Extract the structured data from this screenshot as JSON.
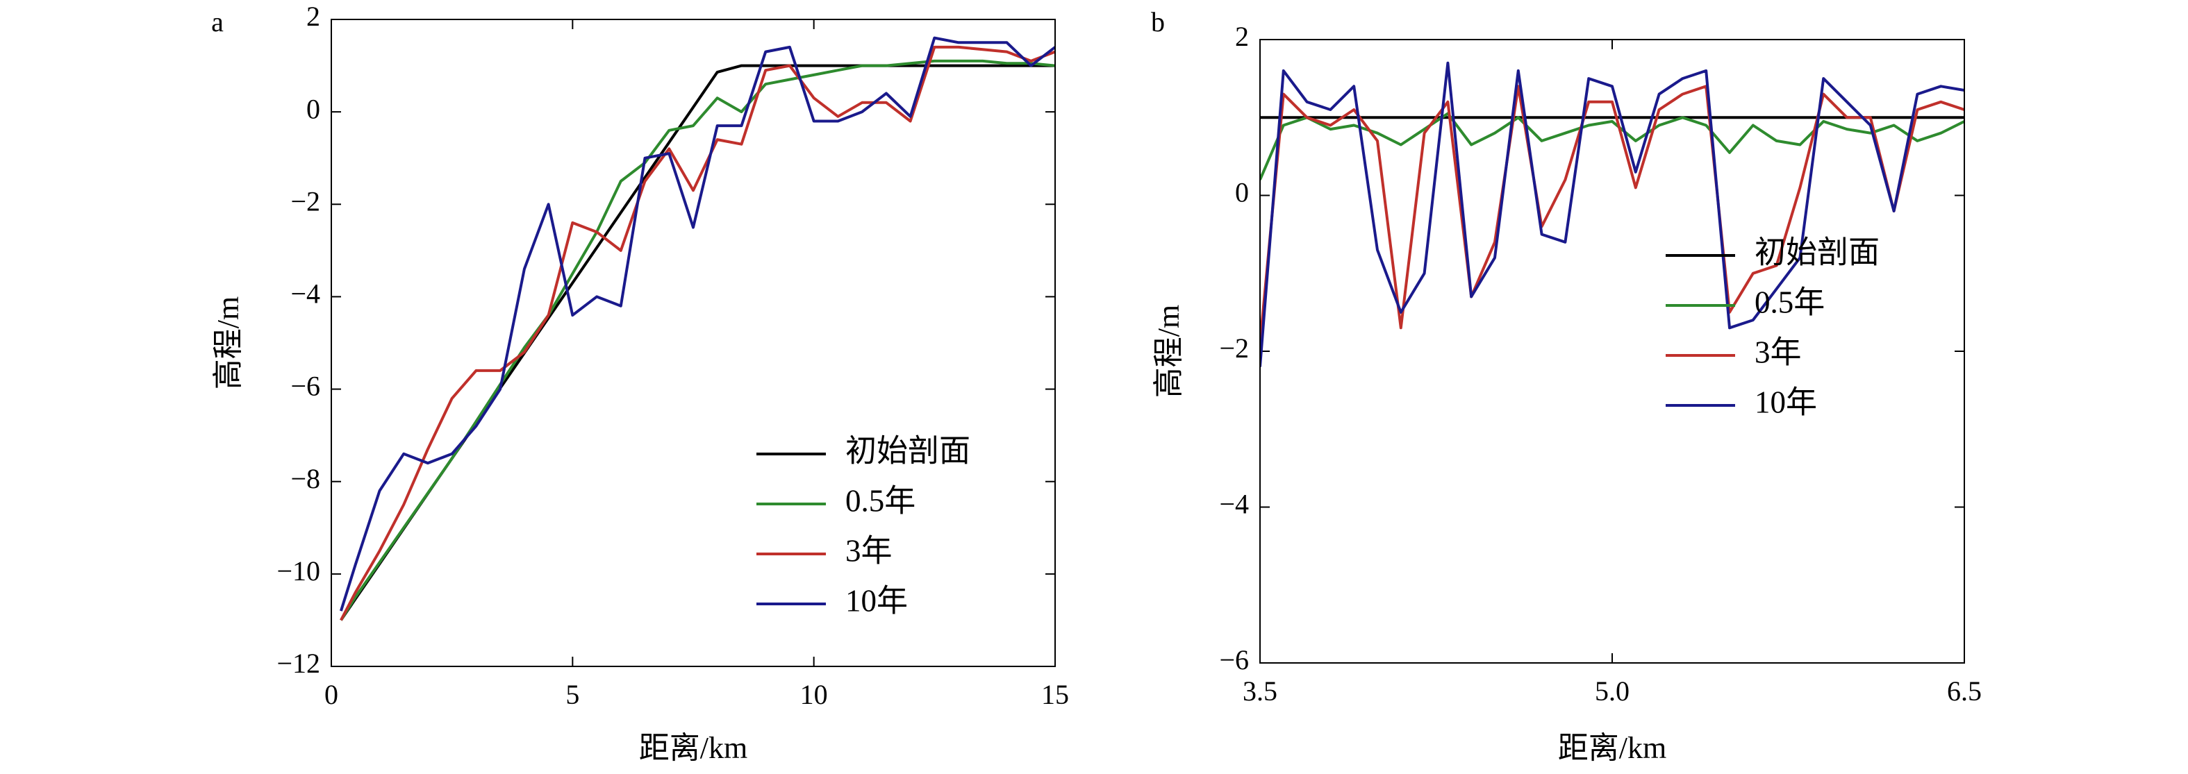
{
  "chart_data": [
    {
      "type": "line",
      "panel": "a",
      "xlabel": "距离/km",
      "ylabel": "高程/m",
      "x": [
        0.2,
        0.5,
        1,
        1.5,
        2,
        2.5,
        3,
        3.5,
        4,
        4.5,
        5,
        5.5,
        6,
        6.5,
        7,
        7.5,
        8,
        8.5,
        9,
        9.5,
        10,
        10.5,
        11,
        11.5,
        12,
        12.5,
        13,
        13.5,
        14,
        14.5,
        15
      ],
      "series": [
        {
          "name": "初始剖面",
          "color": "#000000",
          "values": [
            -11,
            -10.54,
            -9.78,
            -9.02,
            -8.26,
            -7.5,
            -6.74,
            -5.98,
            -5.22,
            -4.46,
            -3.7,
            -2.94,
            -2.18,
            -1.42,
            -0.66,
            0.1,
            0.86,
            1,
            1,
            1,
            1,
            1,
            1,
            1,
            1,
            1,
            1,
            1,
            1,
            1,
            1
          ]
        },
        {
          "name": "0.5年",
          "color": "#2e8b2e",
          "values": [
            -11,
            -10.5,
            -9.75,
            -9,
            -8.25,
            -7.5,
            -6.7,
            -5.9,
            -5.1,
            -4.4,
            -3.5,
            -2.6,
            -1.5,
            -1.1,
            -0.4,
            -0.3,
            0.3,
            0,
            0.6,
            0.7,
            0.8,
            0.9,
            1,
            1,
            1.05,
            1.1,
            1.1,
            1.1,
            1.05,
            1.05,
            1
          ]
        },
        {
          "name": "3年",
          "color": "#c0302b",
          "values": [
            -11,
            -10.4,
            -9.5,
            -8.5,
            -7.3,
            -6.2,
            -5.6,
            -5.6,
            -5.2,
            -4.4,
            -2.4,
            -2.6,
            -3,
            -1.5,
            -0.8,
            -1.7,
            -0.6,
            -0.7,
            0.9,
            1,
            0.3,
            -0.1,
            0.2,
            0.2,
            -0.2,
            1.4,
            1.4,
            1.35,
            1.3,
            1.1,
            1.3
          ]
        },
        {
          "name": "10年",
          "color": "#1a1a8c",
          "values": [
            -10.8,
            -9.8,
            -8.2,
            -7.4,
            -7.6,
            -7.4,
            -6.8,
            -6,
            -3.4,
            -2,
            -4.4,
            -4,
            -4.2,
            -1,
            -0.9,
            -2.5,
            -0.3,
            -0.3,
            1.3,
            1.4,
            -0.2,
            -0.2,
            0,
            0.4,
            -0.1,
            1.6,
            1.5,
            1.5,
            1.5,
            1,
            1.4
          ]
        }
      ],
      "xlim": [
        0,
        15
      ],
      "ylim": [
        -12,
        2
      ],
      "xticks": [
        0,
        5,
        10,
        15
      ],
      "yticks": [
        {
          "value": -12,
          "label": "−12"
        },
        {
          "value": -10,
          "label": "−10"
        },
        {
          "value": -8,
          "label": "−8"
        },
        {
          "value": -6,
          "label": "−6"
        },
        {
          "value": -4,
          "label": "−4"
        },
        {
          "value": -2,
          "label": "−2"
        },
        0,
        2
      ],
      "legend": "lower right"
    },
    {
      "type": "line",
      "panel": "b",
      "xlabel": "距离/km",
      "ylabel": "高程/m",
      "x": [
        3.5,
        3.6,
        3.7,
        3.8,
        3.9,
        4.0,
        4.1,
        4.2,
        4.3,
        4.4,
        4.5,
        4.6,
        4.7,
        4.8,
        4.9,
        5.0,
        5.1,
        5.2,
        5.3,
        5.4,
        5.5,
        5.6,
        5.7,
        5.8,
        5.9,
        6.0,
        6.1,
        6.2,
        6.3,
        6.4,
        6.5
      ],
      "series": [
        {
          "name": "初始剖面",
          "color": "#000000",
          "values": [
            1,
            1,
            1,
            1,
            1,
            1,
            1,
            1,
            1,
            1,
            1,
            1,
            1,
            1,
            1,
            1,
            1,
            1,
            1,
            1,
            1,
            1,
            1,
            1,
            1,
            1,
            1,
            1,
            1,
            1,
            1
          ]
        },
        {
          "name": "0.5年",
          "color": "#2e8b2e",
          "values": [
            0.2,
            0.9,
            1,
            0.85,
            0.9,
            0.8,
            0.65,
            0.85,
            1.05,
            0.65,
            0.8,
            1,
            0.7,
            0.8,
            0.9,
            0.95,
            0.7,
            0.9,
            1,
            0.9,
            0.55,
            0.9,
            0.7,
            0.65,
            0.95,
            0.85,
            0.8,
            0.9,
            0.7,
            0.8,
            0.95
          ]
        },
        {
          "name": "3年",
          "color": "#c0302b",
          "values": [
            -1.9,
            1.3,
            1,
            0.9,
            1.1,
            0.7,
            -1.7,
            0.8,
            1.2,
            -1.3,
            -0.6,
            1.4,
            -0.4,
            0.2,
            1.2,
            1.2,
            0.1,
            1.1,
            1.3,
            1.4,
            -1.5,
            -1,
            -0.9,
            0.1,
            1.3,
            1,
            1,
            -0.2,
            1.1,
            1.2,
            1.1
          ]
        },
        {
          "name": "10年",
          "color": "#1a1a8c",
          "values": [
            -2.2,
            1.6,
            1.2,
            1.1,
            1.4,
            -0.7,
            -1.5,
            -1,
            1.7,
            -1.3,
            -0.8,
            1.6,
            -0.5,
            -0.6,
            1.5,
            1.4,
            0.3,
            1.3,
            1.5,
            1.6,
            -1.7,
            -1.6,
            -1.2,
            -0.8,
            1.5,
            1.2,
            0.9,
            -0.2,
            1.3,
            1.4,
            1.35
          ]
        }
      ],
      "xlim": [
        3.5,
        6.5
      ],
      "ylim": [
        -6,
        2
      ],
      "xticks": [
        3.5,
        {
          "value": 5,
          "label": "5.0"
        },
        6.5
      ],
      "yticks": [
        {
          "value": -6,
          "label": "−6"
        },
        {
          "value": -4,
          "label": "−4"
        },
        {
          "value": -2,
          "label": "−2"
        },
        0,
        2
      ],
      "legend": "center right"
    }
  ]
}
